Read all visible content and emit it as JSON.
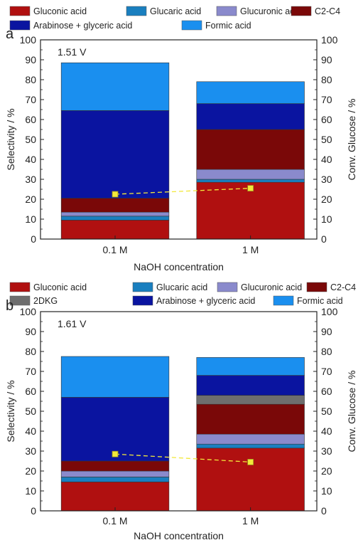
{
  "colors": {
    "gluconic": "#b01010",
    "glucaric": "#1a7fbf",
    "glucuronic": "#8a8acc",
    "c2c4": "#7a0808",
    "dkg": "#6e6e6e",
    "arabinose": "#0a14a0",
    "formic": "#1a8fef",
    "conversion": "#f2e83a"
  },
  "chart_data": [
    {
      "type": "bar",
      "stacked": true,
      "panel_label": "a",
      "annotation": "1.51 V",
      "categories": [
        "0.1 M",
        "1 M"
      ],
      "xlabel": "NaOH concentration",
      "ylabel": "Selectivity / %",
      "y2label": "Conv. Glucose / %",
      "ylim": [
        0,
        100
      ],
      "y2lim": [
        0,
        100
      ],
      "yticks": [
        "0",
        "10",
        "20",
        "30",
        "40",
        "50",
        "60",
        "70",
        "80",
        "90",
        "100"
      ],
      "legend": [
        {
          "label": "Gluconic acid",
          "color_key": "gluconic"
        },
        {
          "label": "Glucaric acid",
          "color_key": "glucaric"
        },
        {
          "label": "Glucuronic acid",
          "color_key": "glucuronic"
        },
        {
          "label": "C2-C4",
          "color_key": "c2c4"
        },
        {
          "label": "Arabinose + glyceric acid",
          "color_key": "arabinose"
        },
        {
          "label": "Formic acid",
          "color_key": "formic"
        }
      ],
      "series": [
        {
          "name": "Gluconic acid",
          "color_key": "gluconic",
          "values": [
            9.5,
            28.5
          ]
        },
        {
          "name": "Glucaric acid",
          "color_key": "glucaric",
          "values": [
            2.0,
            1.5
          ]
        },
        {
          "name": "Glucuronic acid",
          "color_key": "glucuronic",
          "values": [
            2.0,
            5.0
          ]
        },
        {
          "name": "C2-C4",
          "color_key": "c2c4",
          "values": [
            7.0,
            20.0
          ]
        },
        {
          "name": "Arabinose + glyceric acid",
          "color_key": "arabinose",
          "values": [
            44.0,
            13.0
          ]
        },
        {
          "name": "Formic acid",
          "color_key": "formic",
          "values": [
            24.0,
            11.0
          ]
        }
      ],
      "conversion": [
        22.5,
        25.5
      ]
    },
    {
      "type": "bar",
      "stacked": true,
      "panel_label": "b",
      "annotation": "1.61 V",
      "categories": [
        "0.1 M",
        "1 M"
      ],
      "xlabel": "NaOH concentration",
      "ylabel": "Selectivity / %",
      "y2label": "Conv. Glucose / %",
      "ylim": [
        0,
        100
      ],
      "y2lim": [
        0,
        100
      ],
      "yticks": [
        "0",
        "10",
        "20",
        "30",
        "40",
        "50",
        "60",
        "70",
        "80",
        "90",
        "100"
      ],
      "legend": [
        {
          "label": "Gluconic acid",
          "color_key": "gluconic"
        },
        {
          "label": "Glucaric acid",
          "color_key": "glucaric"
        },
        {
          "label": "Glucuronic acid",
          "color_key": "glucuronic"
        },
        {
          "label": "C2-C4",
          "color_key": "c2c4"
        },
        {
          "label": "2DKG",
          "color_key": "dkg"
        },
        {
          "label": "Arabinose + glyceric acid",
          "color_key": "arabinose"
        },
        {
          "label": "Formic acid",
          "color_key": "formic"
        }
      ],
      "series": [
        {
          "name": "Gluconic acid",
          "color_key": "gluconic",
          "values": [
            14.5,
            31.5
          ]
        },
        {
          "name": "Glucaric acid",
          "color_key": "glucaric",
          "values": [
            2.5,
            2.0
          ]
        },
        {
          "name": "Glucuronic acid",
          "color_key": "glucuronic",
          "values": [
            3.0,
            5.0
          ]
        },
        {
          "name": "C2-C4",
          "color_key": "c2c4",
          "values": [
            5.0,
            15.0
          ]
        },
        {
          "name": "2DKG",
          "color_key": "dkg",
          "values": [
            0,
            4.5
          ]
        },
        {
          "name": "Arabinose + glyceric acid",
          "color_key": "arabinose",
          "values": [
            32.0,
            10.0
          ]
        },
        {
          "name": "Formic acid",
          "color_key": "formic",
          "values": [
            20.5,
            9.0
          ]
        }
      ],
      "conversion": [
        28.5,
        24.5
      ]
    }
  ]
}
